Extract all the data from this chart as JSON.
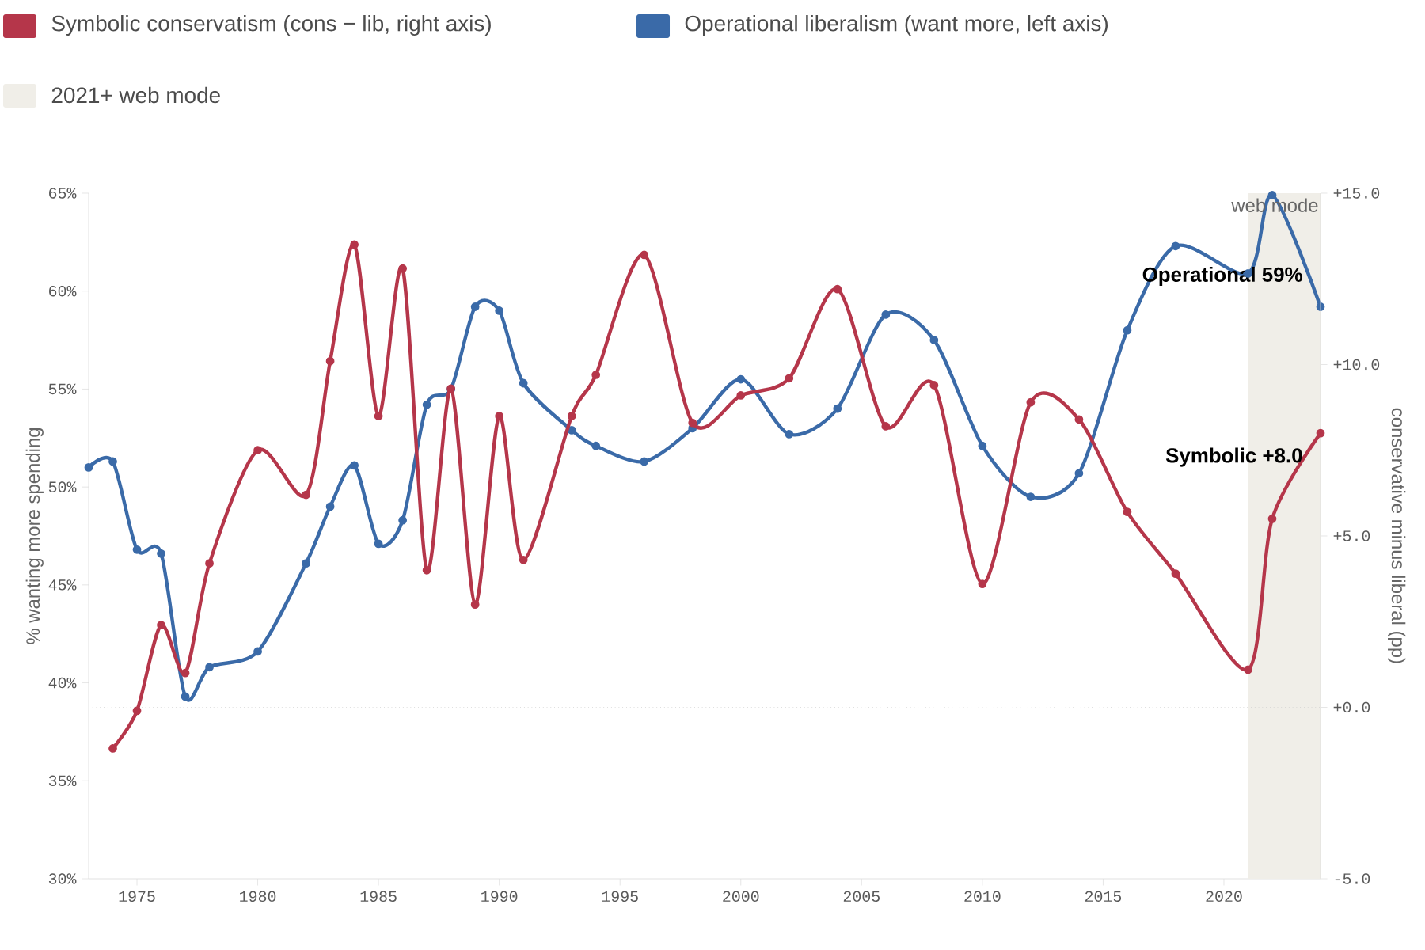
{
  "chart_data": {
    "type": "line",
    "ylabel": "% wanting more spending",
    "y2label": "conservative minus liberal (pp)",
    "xlim": [
      1973,
      2024
    ],
    "xticks": [
      1975,
      1980,
      1985,
      1990,
      1995,
      2000,
      2005,
      2010,
      2015,
      2020
    ],
    "ylim": [
      30,
      65
    ],
    "yticks": [
      {
        "value": 30,
        "label": "30%"
      },
      {
        "value": 35,
        "label": "35%"
      },
      {
        "value": 40,
        "label": "40%"
      },
      {
        "value": 45,
        "label": "45%"
      },
      {
        "value": 50,
        "label": "50%"
      },
      {
        "value": 55,
        "label": "55%"
      },
      {
        "value": 60,
        "label": "60%"
      },
      {
        "value": 65,
        "label": "65%"
      }
    ],
    "y2lim": [
      -5,
      15
    ],
    "y2ticks": [
      {
        "value": -5,
        "label": "-5.0"
      },
      {
        "value": 0,
        "label": "+0.0"
      },
      {
        "value": 5,
        "label": "+5.0"
      },
      {
        "value": 10,
        "label": "+10.0"
      },
      {
        "value": 15,
        "label": "+15.0"
      }
    ],
    "legend": "top left",
    "marker": "circle",
    "line_style": "solid",
    "grid": false,
    "series": [
      {
        "name": "Symbolic conservatism (cons − lib, right axis)",
        "color": "#b5364a",
        "axis": "y2",
        "x": [
          1974,
          1975,
          1976,
          1977,
          1978,
          1980,
          1982,
          1983,
          1984,
          1985,
          1986,
          1987,
          1988,
          1989,
          1990,
          1991,
          1993,
          1994,
          1996,
          1998,
          2000,
          2002,
          2004,
          2006,
          2008,
          2010,
          2012,
          2014,
          2016,
          2018,
          2021,
          2022,
          2024
        ],
        "values": [
          -1.2,
          -0.1,
          2.4,
          1.0,
          4.2,
          7.5,
          6.2,
          10.1,
          13.5,
          8.5,
          12.8,
          4.0,
          9.3,
          3.0,
          8.5,
          4.3,
          8.5,
          9.7,
          13.2,
          8.3,
          9.1,
          9.6,
          12.2,
          8.2,
          9.4,
          3.6,
          8.9,
          8.4,
          5.7,
          3.9,
          1.1,
          5.5,
          8.0
        ]
      },
      {
        "name": "Operational liberalism (want more, left axis)",
        "color": "#3a6aa8",
        "x": [
          1973,
          1974,
          1975,
          1976,
          1977,
          1978,
          1980,
          1982,
          1983,
          1984,
          1985,
          1986,
          1987,
          1988,
          1989,
          1990,
          1991,
          1993,
          1994,
          1996,
          1998,
          2000,
          2002,
          2004,
          2006,
          2008,
          2010,
          2012,
          2014,
          2016,
          2018,
          2021,
          2022,
          2024
        ],
        "values": [
          51.0,
          51.3,
          46.8,
          46.6,
          39.3,
          40.8,
          41.6,
          46.1,
          49.0,
          51.1,
          47.1,
          48.3,
          54.2,
          55.0,
          59.2,
          59.0,
          55.3,
          52.9,
          52.1,
          51.3,
          53.0,
          55.5,
          52.7,
          54.0,
          58.8,
          57.5,
          52.1,
          49.5,
          50.7,
          58.0,
          62.3,
          60.9,
          64.9,
          59.2
        ]
      }
    ],
    "ref_lines": [
      {
        "axis": "y2",
        "value": 0,
        "color": "#cccccc",
        "line_style": "dotted"
      }
    ],
    "bands": [
      {
        "axis": "x",
        "from": 2021,
        "to": 2024,
        "label": "2021+ web mode",
        "color": "#f0eee8"
      }
    ],
    "annotations": [
      "Symbolic +8.0",
      "Operational 59%",
      "web mode"
    ]
  }
}
